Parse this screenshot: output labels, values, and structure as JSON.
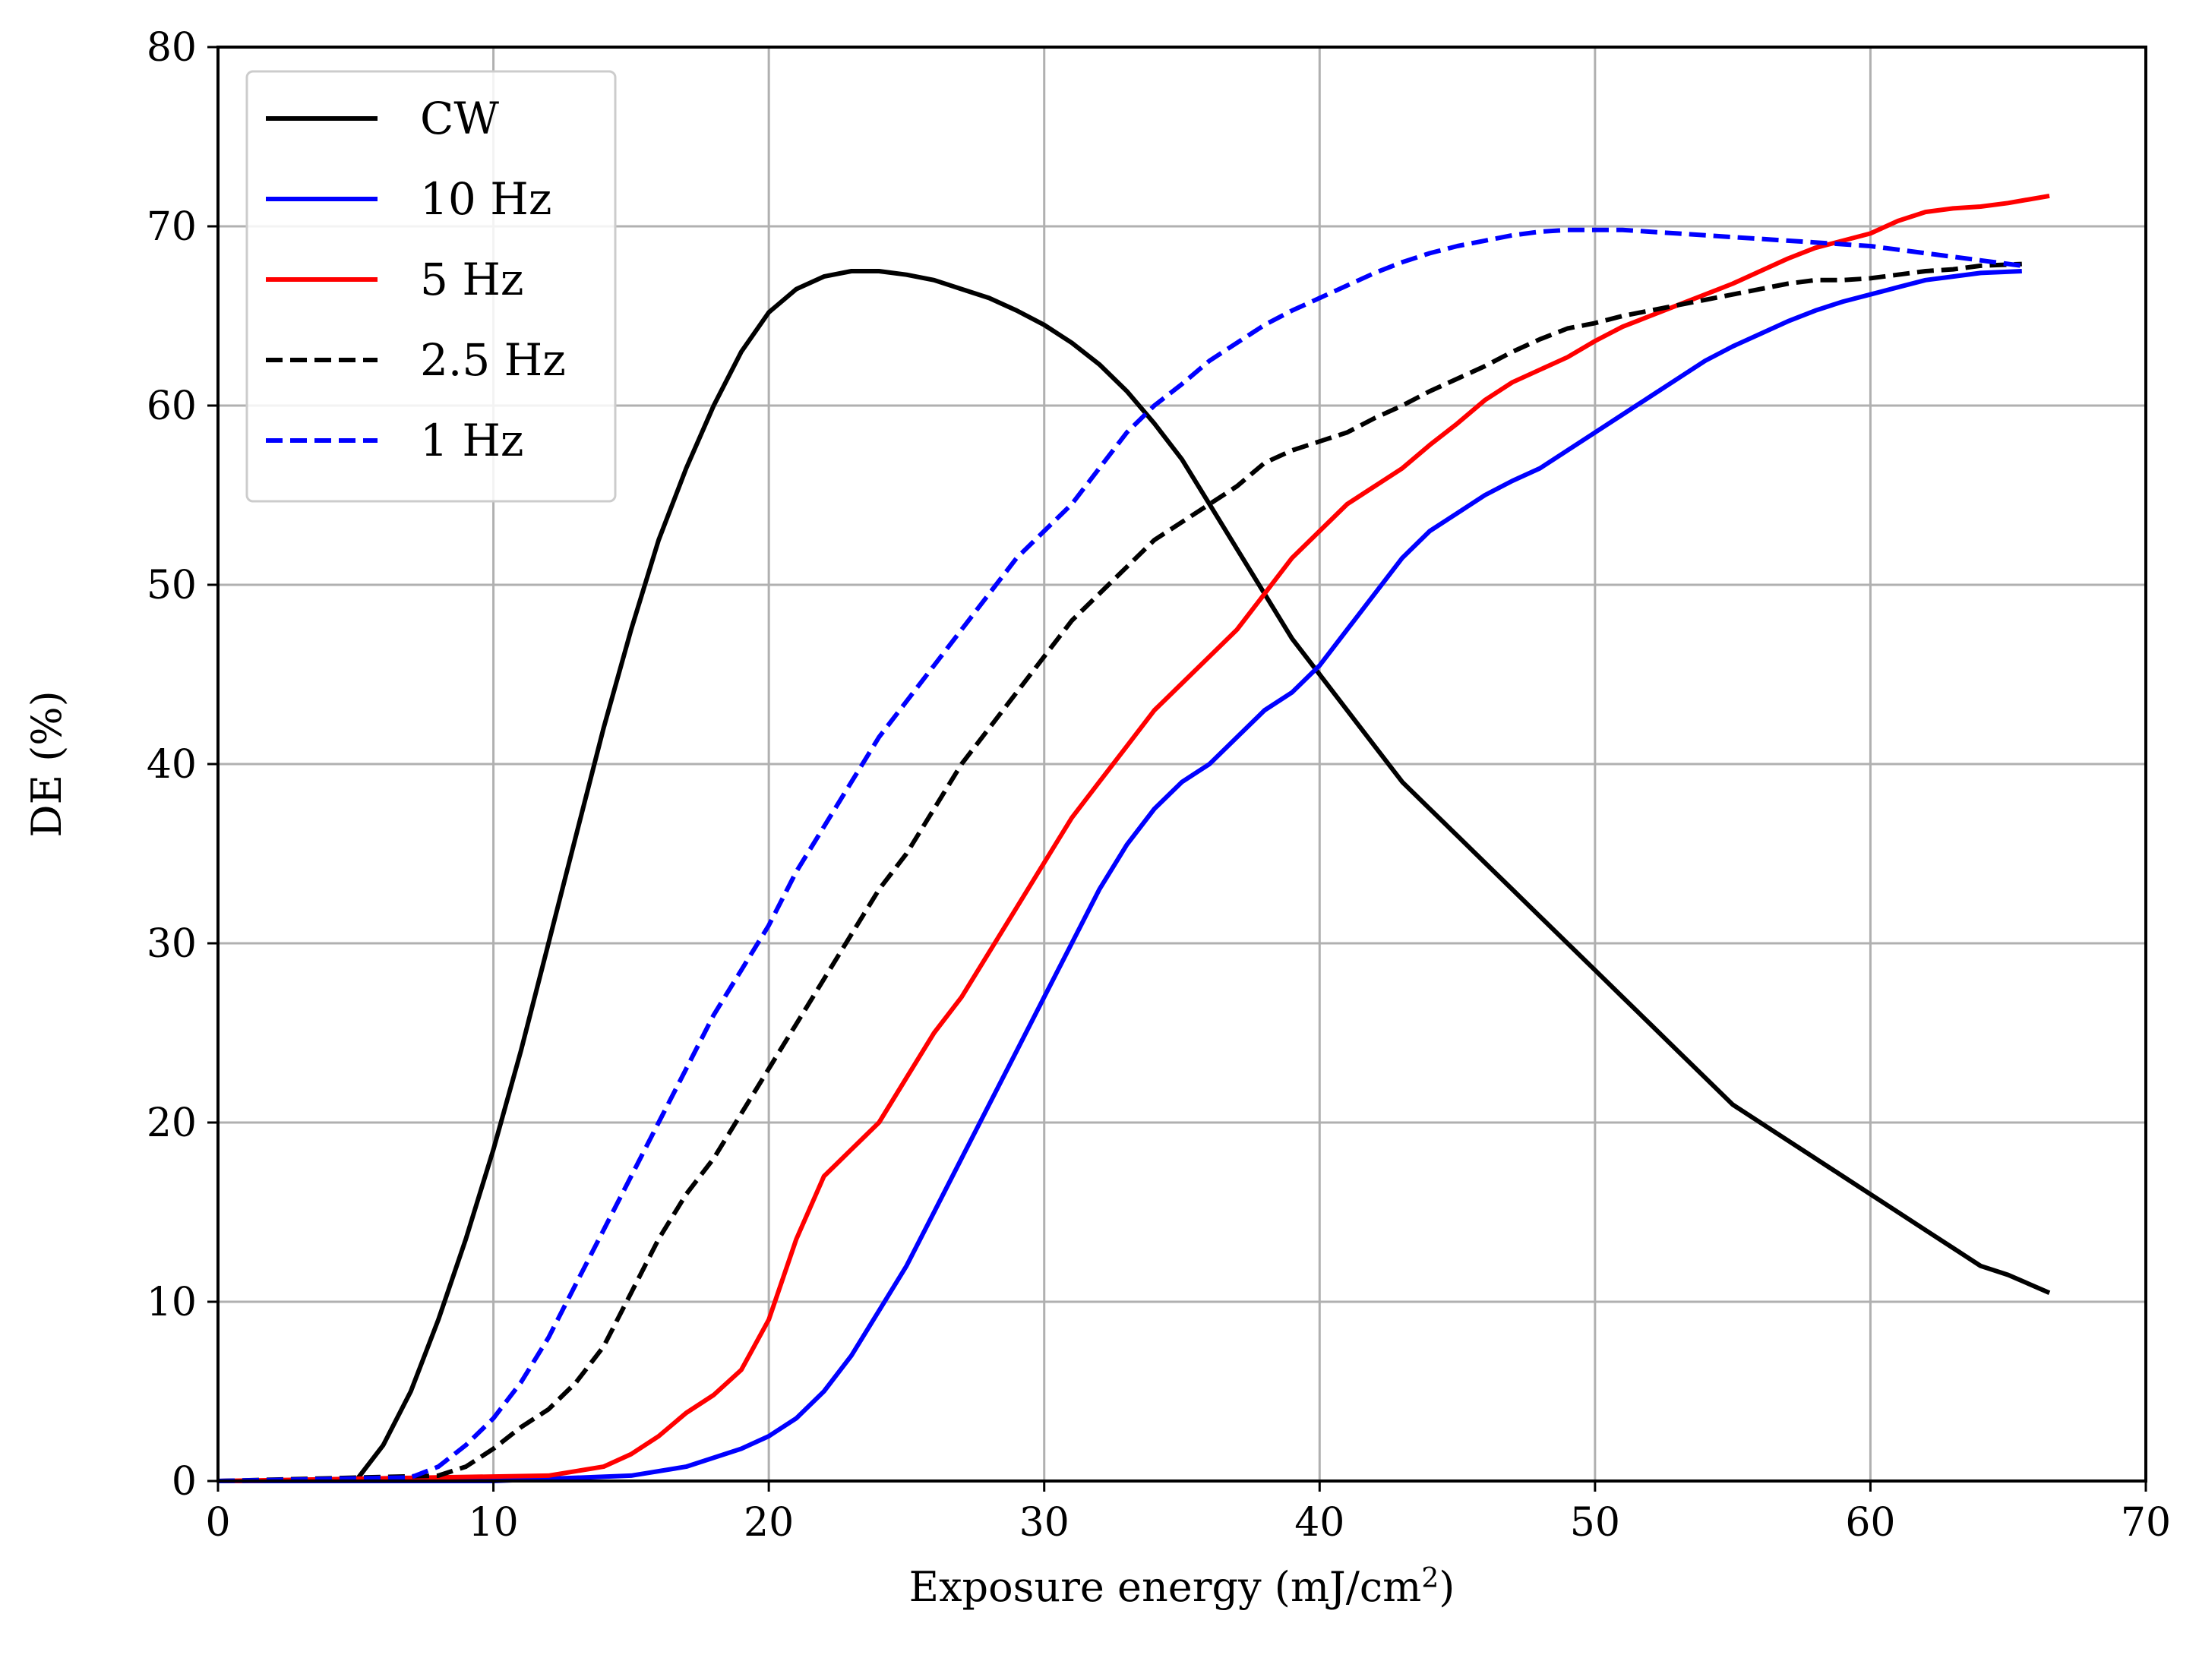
{
  "chart_data": {
    "type": "line",
    "title": "",
    "xlabel": "Exposure energy (mJ/cm",
    "xlabel_superscript": "2",
    "xlabel_suffix": ")",
    "ylabel": "DE (%)",
    "xlim": [
      0,
      70
    ],
    "ylim": [
      0,
      80
    ],
    "xticks": [
      "0",
      "10",
      "20",
      "30",
      "40",
      "50",
      "60",
      "70"
    ],
    "yticks": [
      "0",
      "10",
      "20",
      "30",
      "40",
      "50",
      "60",
      "70",
      "80"
    ],
    "grid": true,
    "legend_position": "top-left",
    "series": [
      {
        "name": "CW",
        "color": "#000000",
        "dash": "solid",
        "points": [
          [
            0,
            0
          ],
          [
            5,
            0
          ],
          [
            6,
            2
          ],
          [
            7,
            5
          ],
          [
            8,
            9
          ],
          [
            9,
            13.5
          ],
          [
            10,
            18.5
          ],
          [
            11,
            24
          ],
          [
            12,
            30
          ],
          [
            13,
            36
          ],
          [
            14,
            42
          ],
          [
            15,
            47.5
          ],
          [
            16,
            52.5
          ],
          [
            17,
            56.5
          ],
          [
            18,
            60
          ],
          [
            19,
            63
          ],
          [
            20,
            65.2
          ],
          [
            21,
            66.5
          ],
          [
            22,
            67.2
          ],
          [
            23,
            67.5
          ],
          [
            24,
            67.5
          ],
          [
            25,
            67.3
          ],
          [
            26,
            67
          ],
          [
            27,
            66.5
          ],
          [
            28,
            66
          ],
          [
            29,
            65.3
          ],
          [
            30,
            64.5
          ],
          [
            31,
            63.5
          ],
          [
            32,
            62.3
          ],
          [
            33,
            60.8
          ],
          [
            34,
            59
          ],
          [
            35,
            57
          ],
          [
            36,
            54.5
          ],
          [
            37,
            52
          ],
          [
            38,
            49.5
          ],
          [
            39,
            47
          ],
          [
            40,
            45
          ],
          [
            41,
            43
          ],
          [
            42,
            41
          ],
          [
            43,
            39
          ],
          [
            44,
            37.5
          ],
          [
            45,
            36
          ],
          [
            46,
            34.5
          ],
          [
            47,
            33
          ],
          [
            48,
            31.5
          ],
          [
            49,
            30
          ],
          [
            50,
            28.5
          ],
          [
            51,
            27
          ],
          [
            52,
            25.5
          ],
          [
            53,
            24
          ],
          [
            54,
            22.5
          ],
          [
            55,
            21
          ],
          [
            56,
            20
          ],
          [
            57,
            19
          ],
          [
            58,
            18
          ],
          [
            59,
            17
          ],
          [
            60,
            16
          ],
          [
            61,
            15
          ],
          [
            62,
            14
          ],
          [
            63,
            13
          ],
          [
            64,
            12
          ],
          [
            65,
            11.5
          ],
          [
            66.5,
            10.5
          ]
        ]
      },
      {
        "name": "10 Hz",
        "color": "#0000ff",
        "dash": "solid",
        "points": [
          [
            0,
            0
          ],
          [
            10,
            0
          ],
          [
            15,
            0.3
          ],
          [
            17,
            0.8
          ],
          [
            19,
            1.8
          ],
          [
            20,
            2.5
          ],
          [
            21,
            3.5
          ],
          [
            22,
            5
          ],
          [
            23,
            7
          ],
          [
            24,
            9.5
          ],
          [
            25,
            12
          ],
          [
            26,
            15
          ],
          [
            27,
            18
          ],
          [
            28,
            21
          ],
          [
            29,
            24
          ],
          [
            30,
            27
          ],
          [
            31,
            30
          ],
          [
            32,
            33
          ],
          [
            33,
            35.5
          ],
          [
            34,
            37.5
          ],
          [
            35,
            39
          ],
          [
            36,
            40
          ],
          [
            37,
            41.5
          ],
          [
            38,
            43
          ],
          [
            39,
            44
          ],
          [
            40,
            45.5
          ],
          [
            41,
            47.5
          ],
          [
            42,
            49.5
          ],
          [
            43,
            51.5
          ],
          [
            44,
            53
          ],
          [
            45,
            54
          ],
          [
            46,
            55
          ],
          [
            47,
            55.8
          ],
          [
            48,
            56.5
          ],
          [
            49,
            57.5
          ],
          [
            50,
            58.5
          ],
          [
            51,
            59.5
          ],
          [
            52,
            60.5
          ],
          [
            53,
            61.5
          ],
          [
            54,
            62.5
          ],
          [
            55,
            63.3
          ],
          [
            56,
            64
          ],
          [
            57,
            64.7
          ],
          [
            58,
            65.3
          ],
          [
            59,
            65.8
          ],
          [
            60,
            66.2
          ],
          [
            61,
            66.6
          ],
          [
            62,
            67
          ],
          [
            63,
            67.2
          ],
          [
            64,
            67.4
          ],
          [
            65.5,
            67.5
          ]
        ]
      },
      {
        "name": "5 Hz",
        "color": "#ff0000",
        "dash": "solid",
        "points": [
          [
            0,
            0
          ],
          [
            12,
            0.3
          ],
          [
            14,
            0.8
          ],
          [
            15,
            1.5
          ],
          [
            16,
            2.5
          ],
          [
            17,
            3.8
          ],
          [
            18,
            4.8
          ],
          [
            19,
            6.2
          ],
          [
            20,
            9
          ],
          [
            21,
            13.5
          ],
          [
            22,
            17
          ],
          [
            23,
            18.5
          ],
          [
            24,
            20
          ],
          [
            25,
            22.5
          ],
          [
            26,
            25
          ],
          [
            27,
            27
          ],
          [
            28,
            29.5
          ],
          [
            29,
            32
          ],
          [
            30,
            34.5
          ],
          [
            31,
            37
          ],
          [
            32,
            39
          ],
          [
            33,
            41
          ],
          [
            34,
            43
          ],
          [
            35,
            44.5
          ],
          [
            36,
            46
          ],
          [
            37,
            47.5
          ],
          [
            38,
            49.5
          ],
          [
            39,
            51.5
          ],
          [
            40,
            53
          ],
          [
            41,
            54.5
          ],
          [
            42,
            55.5
          ],
          [
            43,
            56.5
          ],
          [
            44,
            57.8
          ],
          [
            45,
            59
          ],
          [
            46,
            60.3
          ],
          [
            47,
            61.3
          ],
          [
            48,
            62
          ],
          [
            49,
            62.7
          ],
          [
            50,
            63.6
          ],
          [
            51,
            64.4
          ],
          [
            52,
            65
          ],
          [
            53,
            65.6
          ],
          [
            54,
            66.2
          ],
          [
            55,
            66.8
          ],
          [
            56,
            67.5
          ],
          [
            57,
            68.2
          ],
          [
            58,
            68.8
          ],
          [
            59,
            69.2
          ],
          [
            60,
            69.6
          ],
          [
            61,
            70.3
          ],
          [
            62,
            70.8
          ],
          [
            63,
            71
          ],
          [
            64,
            71.1
          ],
          [
            65,
            71.3
          ],
          [
            66.5,
            71.7
          ]
        ]
      },
      {
        "name": "2.5 Hz",
        "color": "#000000",
        "dash": "dashed",
        "points": [
          [
            0,
            0
          ],
          [
            8,
            0.3
          ],
          [
            9,
            0.8
          ],
          [
            10,
            1.8
          ],
          [
            11,
            3
          ],
          [
            12,
            4
          ],
          [
            13,
            5.5
          ],
          [
            14,
            7.5
          ],
          [
            15,
            10.5
          ],
          [
            16,
            13.5
          ],
          [
            17,
            16
          ],
          [
            18,
            18
          ],
          [
            19,
            20.5
          ],
          [
            20,
            23
          ],
          [
            21,
            25.5
          ],
          [
            22,
            28
          ],
          [
            23,
            30.5
          ],
          [
            24,
            33
          ],
          [
            25,
            35
          ],
          [
            26,
            37.5
          ],
          [
            27,
            40
          ],
          [
            28,
            42
          ],
          [
            29,
            44
          ],
          [
            30,
            46
          ],
          [
            31,
            48
          ],
          [
            32,
            49.5
          ],
          [
            33,
            51
          ],
          [
            34,
            52.5
          ],
          [
            35,
            53.5
          ],
          [
            36,
            54.5
          ],
          [
            37,
            55.5
          ],
          [
            38,
            56.8
          ],
          [
            39,
            57.5
          ],
          [
            40,
            58
          ],
          [
            41,
            58.5
          ],
          [
            42,
            59.3
          ],
          [
            43,
            60
          ],
          [
            44,
            60.8
          ],
          [
            45,
            61.5
          ],
          [
            46,
            62.2
          ],
          [
            47,
            63
          ],
          [
            48,
            63.7
          ],
          [
            49,
            64.3
          ],
          [
            50,
            64.6
          ],
          [
            51,
            65
          ],
          [
            52,
            65.3
          ],
          [
            53,
            65.6
          ],
          [
            54,
            65.9
          ],
          [
            55,
            66.2
          ],
          [
            56,
            66.5
          ],
          [
            57,
            66.8
          ],
          [
            58,
            67
          ],
          [
            59,
            67
          ],
          [
            60,
            67.1
          ],
          [
            61,
            67.3
          ],
          [
            62,
            67.5
          ],
          [
            63,
            67.6
          ],
          [
            64,
            67.8
          ],
          [
            65.5,
            67.9
          ]
        ]
      },
      {
        "name": "1 Hz",
        "color": "#0000ff",
        "dash": "dashed",
        "points": [
          [
            0,
            0
          ],
          [
            7,
            0.2
          ],
          [
            8,
            0.8
          ],
          [
            9,
            2
          ],
          [
            10,
            3.5
          ],
          [
            11,
            5.5
          ],
          [
            12,
            8
          ],
          [
            13,
            11
          ],
          [
            14,
            14
          ],
          [
            15,
            17
          ],
          [
            16,
            20
          ],
          [
            17,
            23
          ],
          [
            18,
            26
          ],
          [
            19,
            28.5
          ],
          [
            20,
            31
          ],
          [
            21,
            34
          ],
          [
            22,
            36.5
          ],
          [
            23,
            39
          ],
          [
            24,
            41.5
          ],
          [
            25,
            43.5
          ],
          [
            26,
            45.5
          ],
          [
            27,
            47.5
          ],
          [
            28,
            49.5
          ],
          [
            29,
            51.5
          ],
          [
            30,
            53
          ],
          [
            31,
            54.5
          ],
          [
            32,
            56.5
          ],
          [
            33,
            58.5
          ],
          [
            34,
            60
          ],
          [
            35,
            61.2
          ],
          [
            36,
            62.5
          ],
          [
            37,
            63.5
          ],
          [
            38,
            64.5
          ],
          [
            39,
            65.3
          ],
          [
            40,
            66
          ],
          [
            41,
            66.7
          ],
          [
            42,
            67.4
          ],
          [
            43,
            68
          ],
          [
            44,
            68.5
          ],
          [
            45,
            68.9
          ],
          [
            46,
            69.2
          ],
          [
            47,
            69.5
          ],
          [
            48,
            69.7
          ],
          [
            49,
            69.8
          ],
          [
            50,
            69.8
          ],
          [
            51,
            69.8
          ],
          [
            52,
            69.7
          ],
          [
            53,
            69.6
          ],
          [
            54,
            69.5
          ],
          [
            55,
            69.4
          ],
          [
            56,
            69.3
          ],
          [
            57,
            69.2
          ],
          [
            58,
            69.1
          ],
          [
            59,
            69
          ],
          [
            60,
            68.9
          ],
          [
            61,
            68.7
          ],
          [
            62,
            68.5
          ],
          [
            63,
            68.3
          ],
          [
            64,
            68.1
          ],
          [
            65.5,
            67.8
          ]
        ]
      }
    ]
  }
}
